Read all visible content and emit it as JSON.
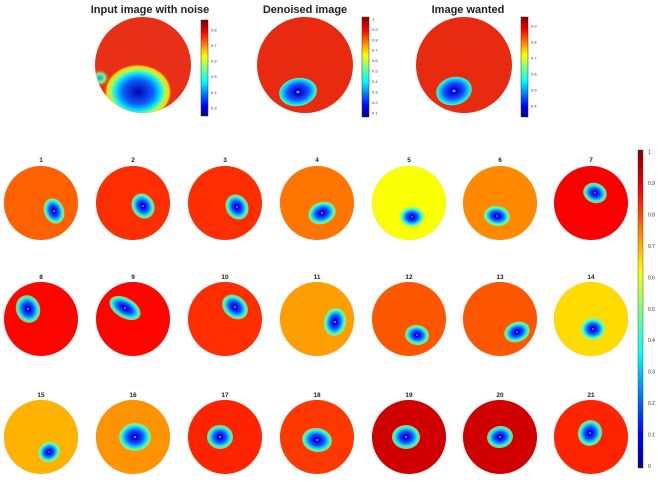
{
  "top_panels": [
    {
      "title": "Input image with noise",
      "colorbar_ticks": [
        "0.8",
        "0.7",
        "0.6",
        "0.5",
        "0.4",
        "0.3"
      ]
    },
    {
      "title": "Denoised image",
      "colorbar_ticks": [
        "1",
        "0.9",
        "0.8",
        "0.7",
        "0.6",
        "0.5",
        "0.4",
        "0.3",
        "0.2",
        "0.1"
      ]
    },
    {
      "title": "Image wanted",
      "colorbar_ticks": [
        "0.9",
        "0.8",
        "0.7",
        "0.6",
        "0.5",
        "0.4"
      ]
    }
  ],
  "grid_labels": [
    "1",
    "2",
    "3",
    "4",
    "5",
    "6",
    "7",
    "8",
    "9",
    "10",
    "11",
    "12",
    "13",
    "14",
    "15",
    "16",
    "17",
    "18",
    "19",
    "20",
    "21"
  ],
  "grid_background_levels": [
    0.78,
    0.83,
    0.83,
    0.76,
    0.62,
    0.74,
    0.88,
    0.87,
    0.87,
    0.83,
    0.72,
    0.79,
    0.79,
    0.66,
    0.7,
    0.73,
    0.84,
    0.82,
    0.92,
    0.92,
    0.84
  ],
  "colorbar_ticks": [
    "1",
    "0.9",
    "0.8",
    "0.7",
    "0.6",
    "0.5",
    "0.4",
    "0.3",
    "0.2",
    "0.1",
    "0"
  ],
  "colormap": "jet"
}
